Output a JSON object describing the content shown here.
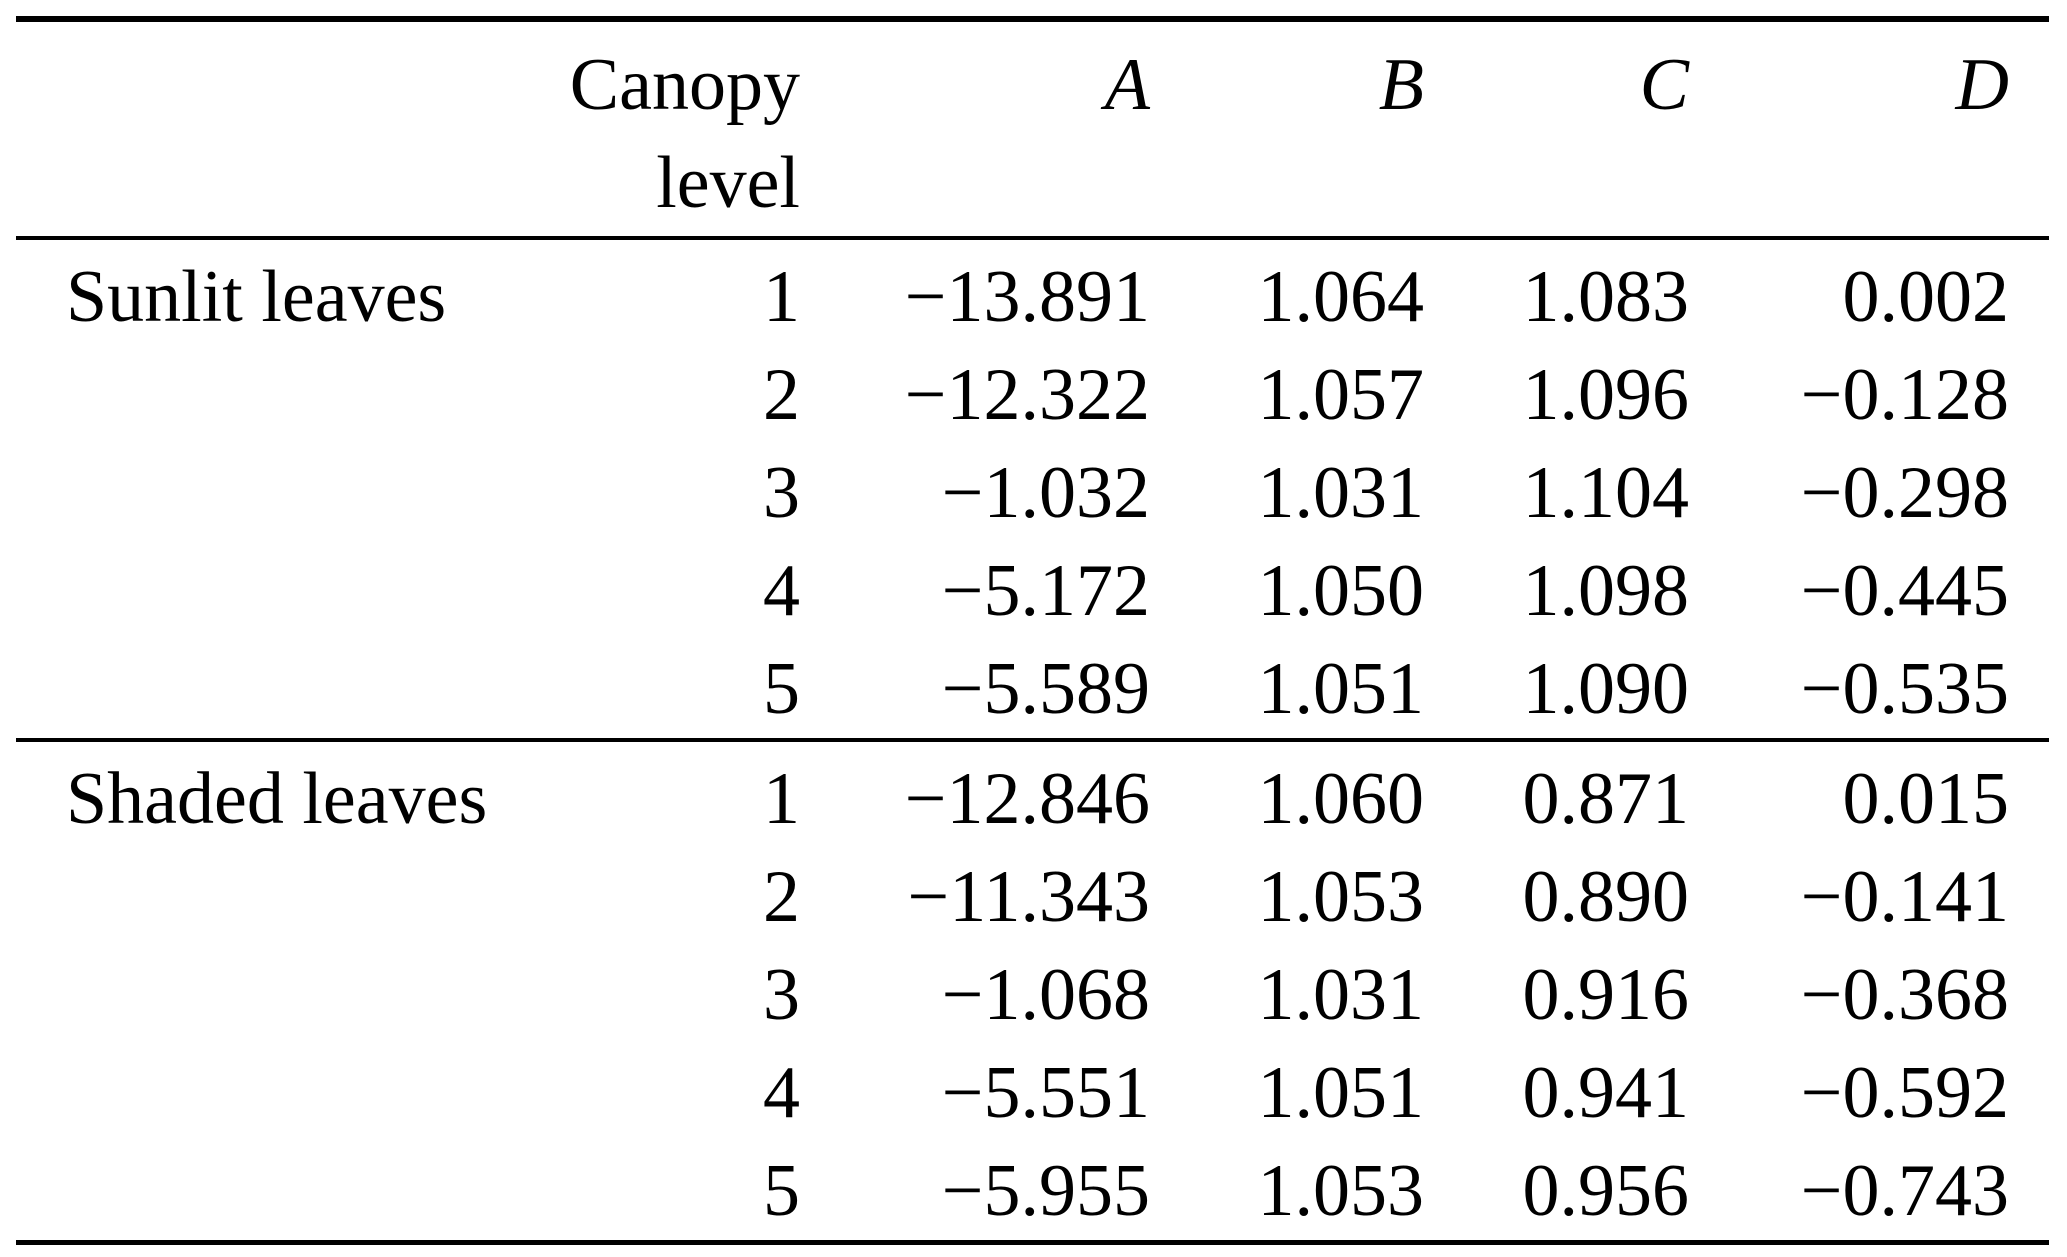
{
  "table": {
    "colors": {
      "text": "#000000",
      "background": "#ffffff",
      "rule": "#000000"
    },
    "header": {
      "canopy_lines": [
        "Canopy",
        "level"
      ],
      "columns": [
        "A",
        "B",
        "C",
        "D"
      ]
    },
    "sections": [
      {
        "label": "Sunlit leaves",
        "rows": [
          {
            "level": "1",
            "A": "−13.891",
            "B": "1.064",
            "C": "1.083",
            "D": "0.002"
          },
          {
            "level": "2",
            "A": "−12.322",
            "B": "1.057",
            "C": "1.096",
            "D": "−0.128"
          },
          {
            "level": "3",
            "A": "−1.032",
            "B": "1.031",
            "C": "1.104",
            "D": "−0.298"
          },
          {
            "level": "4",
            "A": "−5.172",
            "B": "1.050",
            "C": "1.098",
            "D": "−0.445"
          },
          {
            "level": "5",
            "A": "−5.589",
            "B": "1.051",
            "C": "1.090",
            "D": "−0.535"
          }
        ]
      },
      {
        "label": "Shaded leaves",
        "rows": [
          {
            "level": "1",
            "A": "−12.846",
            "B": "1.060",
            "C": "0.871",
            "D": "0.015"
          },
          {
            "level": "2",
            "A": "−11.343",
            "B": "1.053",
            "C": "0.890",
            "D": "−0.141"
          },
          {
            "level": "3",
            "A": "−1.068",
            "B": "1.031",
            "C": "0.916",
            "D": "−0.368"
          },
          {
            "level": "4",
            "A": "−5.551",
            "B": "1.051",
            "C": "0.941",
            "D": "−0.592"
          },
          {
            "level": "5",
            "A": "−5.955",
            "B": "1.053",
            "C": "0.956",
            "D": "−0.743"
          }
        ]
      }
    ]
  }
}
